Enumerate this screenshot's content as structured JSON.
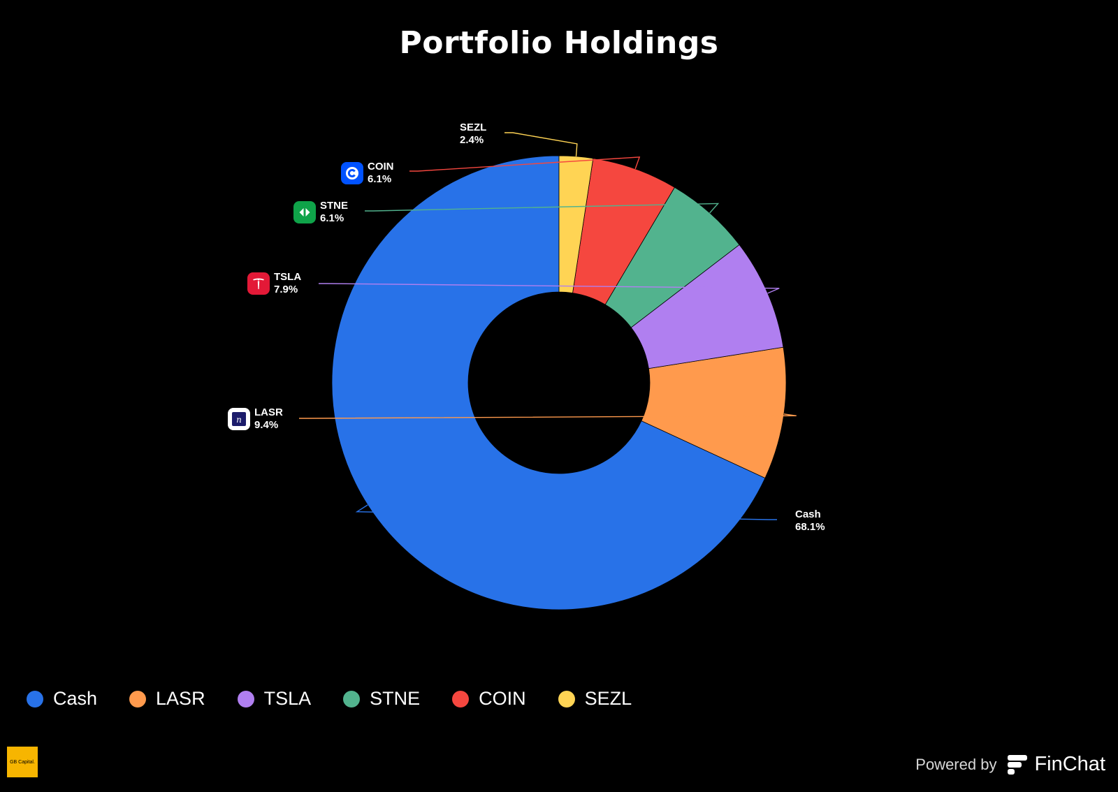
{
  "chart_data": {
    "type": "pie",
    "style": "donut",
    "title": "Portfolio Holdings",
    "legend_position": "bottom-left",
    "slices": [
      {
        "label": "Cash",
        "value": 68.1,
        "value_label": "68.1%",
        "color": "#2872e8",
        "icon": null
      },
      {
        "label": "LASR",
        "value": 9.4,
        "value_label": "9.4%",
        "color": "#ff9a4d",
        "icon": "nlight-logo-icon"
      },
      {
        "label": "TSLA",
        "value": 7.9,
        "value_label": "7.9%",
        "color": "#b07ff0",
        "icon": "tesla-logo-icon"
      },
      {
        "label": "STNE",
        "value": 6.1,
        "value_label": "6.1%",
        "color": "#52b38e",
        "icon": "stone-logo-icon"
      },
      {
        "label": "COIN",
        "value": 6.1,
        "value_label": "6.1%",
        "color": "#f5473f",
        "icon": "coinbase-logo-icon"
      },
      {
        "label": "SEZL",
        "value": 2.4,
        "value_label": "2.4%",
        "color": "#ffd454",
        "icon": null
      }
    ]
  },
  "footer": {
    "brand_logo_text": "GB Capital.",
    "powered_by": "Powered by",
    "provider": "FinChat"
  }
}
